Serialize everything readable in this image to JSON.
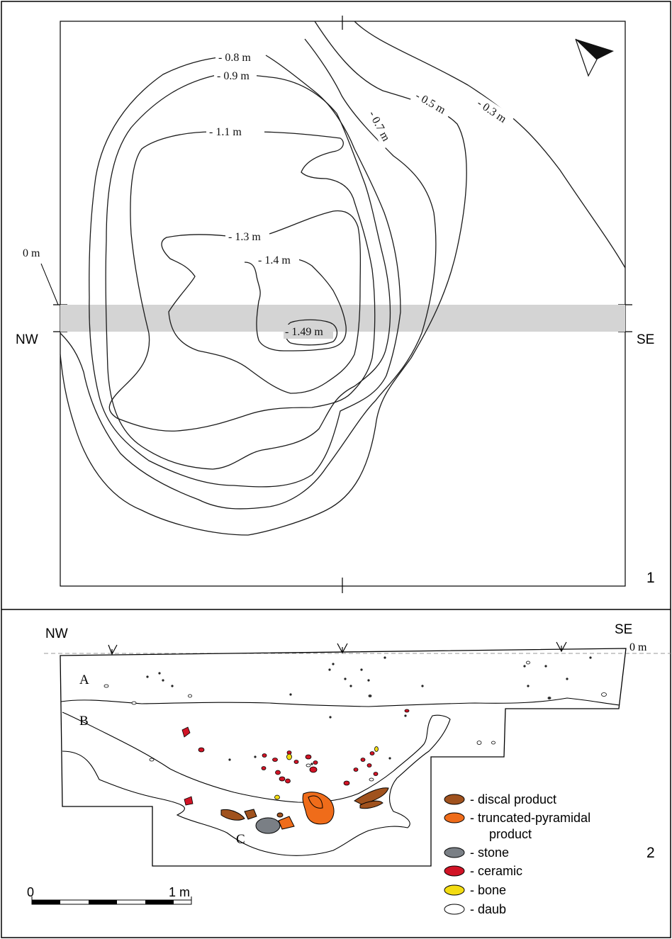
{
  "panel1": {
    "number": "1",
    "zero_label": "0 m",
    "nw": "NW",
    "se": "SE",
    "contours": [
      "- 0.3 m",
      "- 0.5 m",
      "- 0.7 m",
      "- 0.8 m",
      "- 0.9 m",
      "- 1.1 m",
      "- 1.3 m",
      "- 1.4 m",
      "- 1.49 m"
    ]
  },
  "panel2": {
    "number": "2",
    "nw": "NW",
    "se": "SE",
    "zero_label": "0 m",
    "layers": [
      "A",
      "B",
      "C"
    ],
    "scale": {
      "start": "0",
      "end": "1 m"
    },
    "legend": [
      {
        "label": "- discal product",
        "color": "#a0521e"
      },
      {
        "label": "- truncated-pyramidal",
        "color": "#ef6c1a"
      },
      {
        "label": "product",
        "color": ""
      },
      {
        "label": "- stone",
        "color": "#7a7f85"
      },
      {
        "label": "- ceramic",
        "color": "#d11426"
      },
      {
        "label": "- bone",
        "color": "#f3dc12"
      },
      {
        "label": "- daub",
        "color": "#ffffff"
      }
    ]
  }
}
